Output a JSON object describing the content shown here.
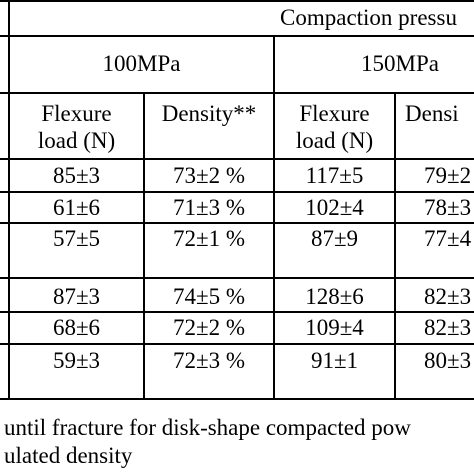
{
  "header": {
    "group": "Compaction pressu",
    "p100": "100MPa",
    "p150": "150MPa",
    "col_flex_line1": "Flexure",
    "col_flex_line2": "load (N)",
    "col_density": "Density**",
    "col_density_cut": "Densi"
  },
  "rows": [
    {
      "f100": "85±3",
      "d100": "73±2 %",
      "f150": "117±5",
      "d150": "79±2"
    },
    {
      "f100": "61±6",
      "d100": "71±3 %",
      "f150": "102±4",
      "d150": "78±3"
    },
    {
      "f100": "57±5",
      "d100": "72±1 %",
      "f150": "87±9",
      "d150": "77±4"
    },
    {
      "f100": "87±3",
      "d100": "74±5 %",
      "f150": "128±6",
      "d150": "82±3"
    },
    {
      "f100": "68±6",
      "d100": "72±2 %",
      "f150": "109±4",
      "d150": "82±3"
    },
    {
      "f100": "59±3",
      "d100": "72±3 %",
      "f150": "91±1",
      "d150": "80±3"
    }
  ],
  "caption": {
    "line1": "until fracture for disk-shape compacted pow",
    "line2": "ulated density"
  }
}
